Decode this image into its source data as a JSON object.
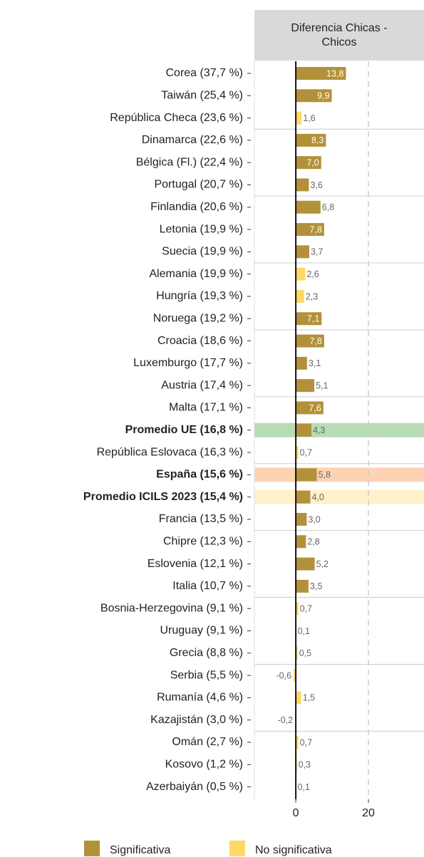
{
  "chart_data": {
    "type": "barh",
    "facet_title": "Diferencia Chicas - Chicos",
    "categories": [
      "Corea (37,7 %)",
      "Taiwán (25,4 %)",
      "República Checa (23,6 %)",
      "Dinamarca (22,6 %)",
      "Bélgica (Fl.) (22,4 %)",
      "Portugal (20,7 %)",
      "Finlandia (20,6 %)",
      "Letonia (19,9 %)",
      "Suecia (19,9 %)",
      "Alemania (19,9 %)",
      "Hungría (19,3 %)",
      "Noruega (19,2 %)",
      "Croacia (18,6 %)",
      "Luxemburgo (17,7 %)",
      "Austria (17,4 %)",
      "Malta (17,1 %)",
      "Promedio UE (16,8 %)",
      "República Eslovaca (16,3 %)",
      "España (15,6 %)",
      "Promedio ICILS 2023 (15,4 %)",
      "Francia (13,5 %)",
      "Chipre (12,3 %)",
      "Eslovenia (12,1 %)",
      "Italia (10,7 %)",
      "Bosnia-Herzegovina (9,1 %)",
      "Uruguay (9,1 %)",
      "Grecia (8,8 %)",
      "Serbia (5,5 %)",
      "Rumanía (4,6 %)",
      "Kazajistán (3,0 %)",
      "Omán (2,7 %)",
      "Kosovo (1,2 %)",
      "Azerbaiyán (0,5 %)"
    ],
    "values": [
      13.8,
      9.9,
      1.6,
      8.3,
      7.0,
      3.6,
      6.8,
      7.8,
      3.7,
      2.6,
      2.3,
      7.1,
      7.8,
      3.1,
      5.1,
      7.6,
      4.3,
      0.7,
      5.8,
      4.0,
      3.0,
      2.8,
      5.2,
      3.5,
      0.7,
      0.1,
      0.5,
      -0.6,
      1.5,
      -0.2,
      0.7,
      0.3,
      0.1
    ],
    "value_labels": [
      "13,8",
      "9,9",
      "1,6",
      "8,3",
      "7,0",
      "3,6",
      "6,8",
      "7,8",
      "3,7",
      "2,6",
      "2,3",
      "7,1",
      "7,8",
      "3,1",
      "5,1",
      "7,6",
      "4,3",
      "0,7",
      "5,8",
      "4,0",
      "3,0",
      "2,8",
      "5,2",
      "3,5",
      "0,7",
      "0,1",
      "0,5",
      "-0,6",
      "1,5",
      "-0,2",
      "0,7",
      "0,3",
      "0,1"
    ],
    "significant": [
      true,
      true,
      false,
      true,
      true,
      true,
      true,
      true,
      true,
      false,
      false,
      true,
      true,
      true,
      true,
      true,
      true,
      false,
      true,
      true,
      true,
      true,
      true,
      true,
      false,
      false,
      false,
      false,
      false,
      false,
      false,
      false,
      false
    ],
    "highlight": [
      null,
      null,
      null,
      null,
      null,
      null,
      null,
      null,
      null,
      null,
      null,
      null,
      null,
      null,
      null,
      null,
      "#b7dcb3",
      null,
      "#fdd3b4",
      "#fff1cc",
      null,
      null,
      null,
      null,
      null,
      null,
      null,
      null,
      null,
      null,
      null,
      null,
      null
    ],
    "legend": [
      {
        "name": "Significativa",
        "color": "#b3913a"
      },
      {
        "name": "No significativa",
        "color": "#fdd965"
      }
    ],
    "xlim": [
      -11.4,
      35.3
    ],
    "xticks": [
      0,
      20
    ],
    "grid": true
  }
}
